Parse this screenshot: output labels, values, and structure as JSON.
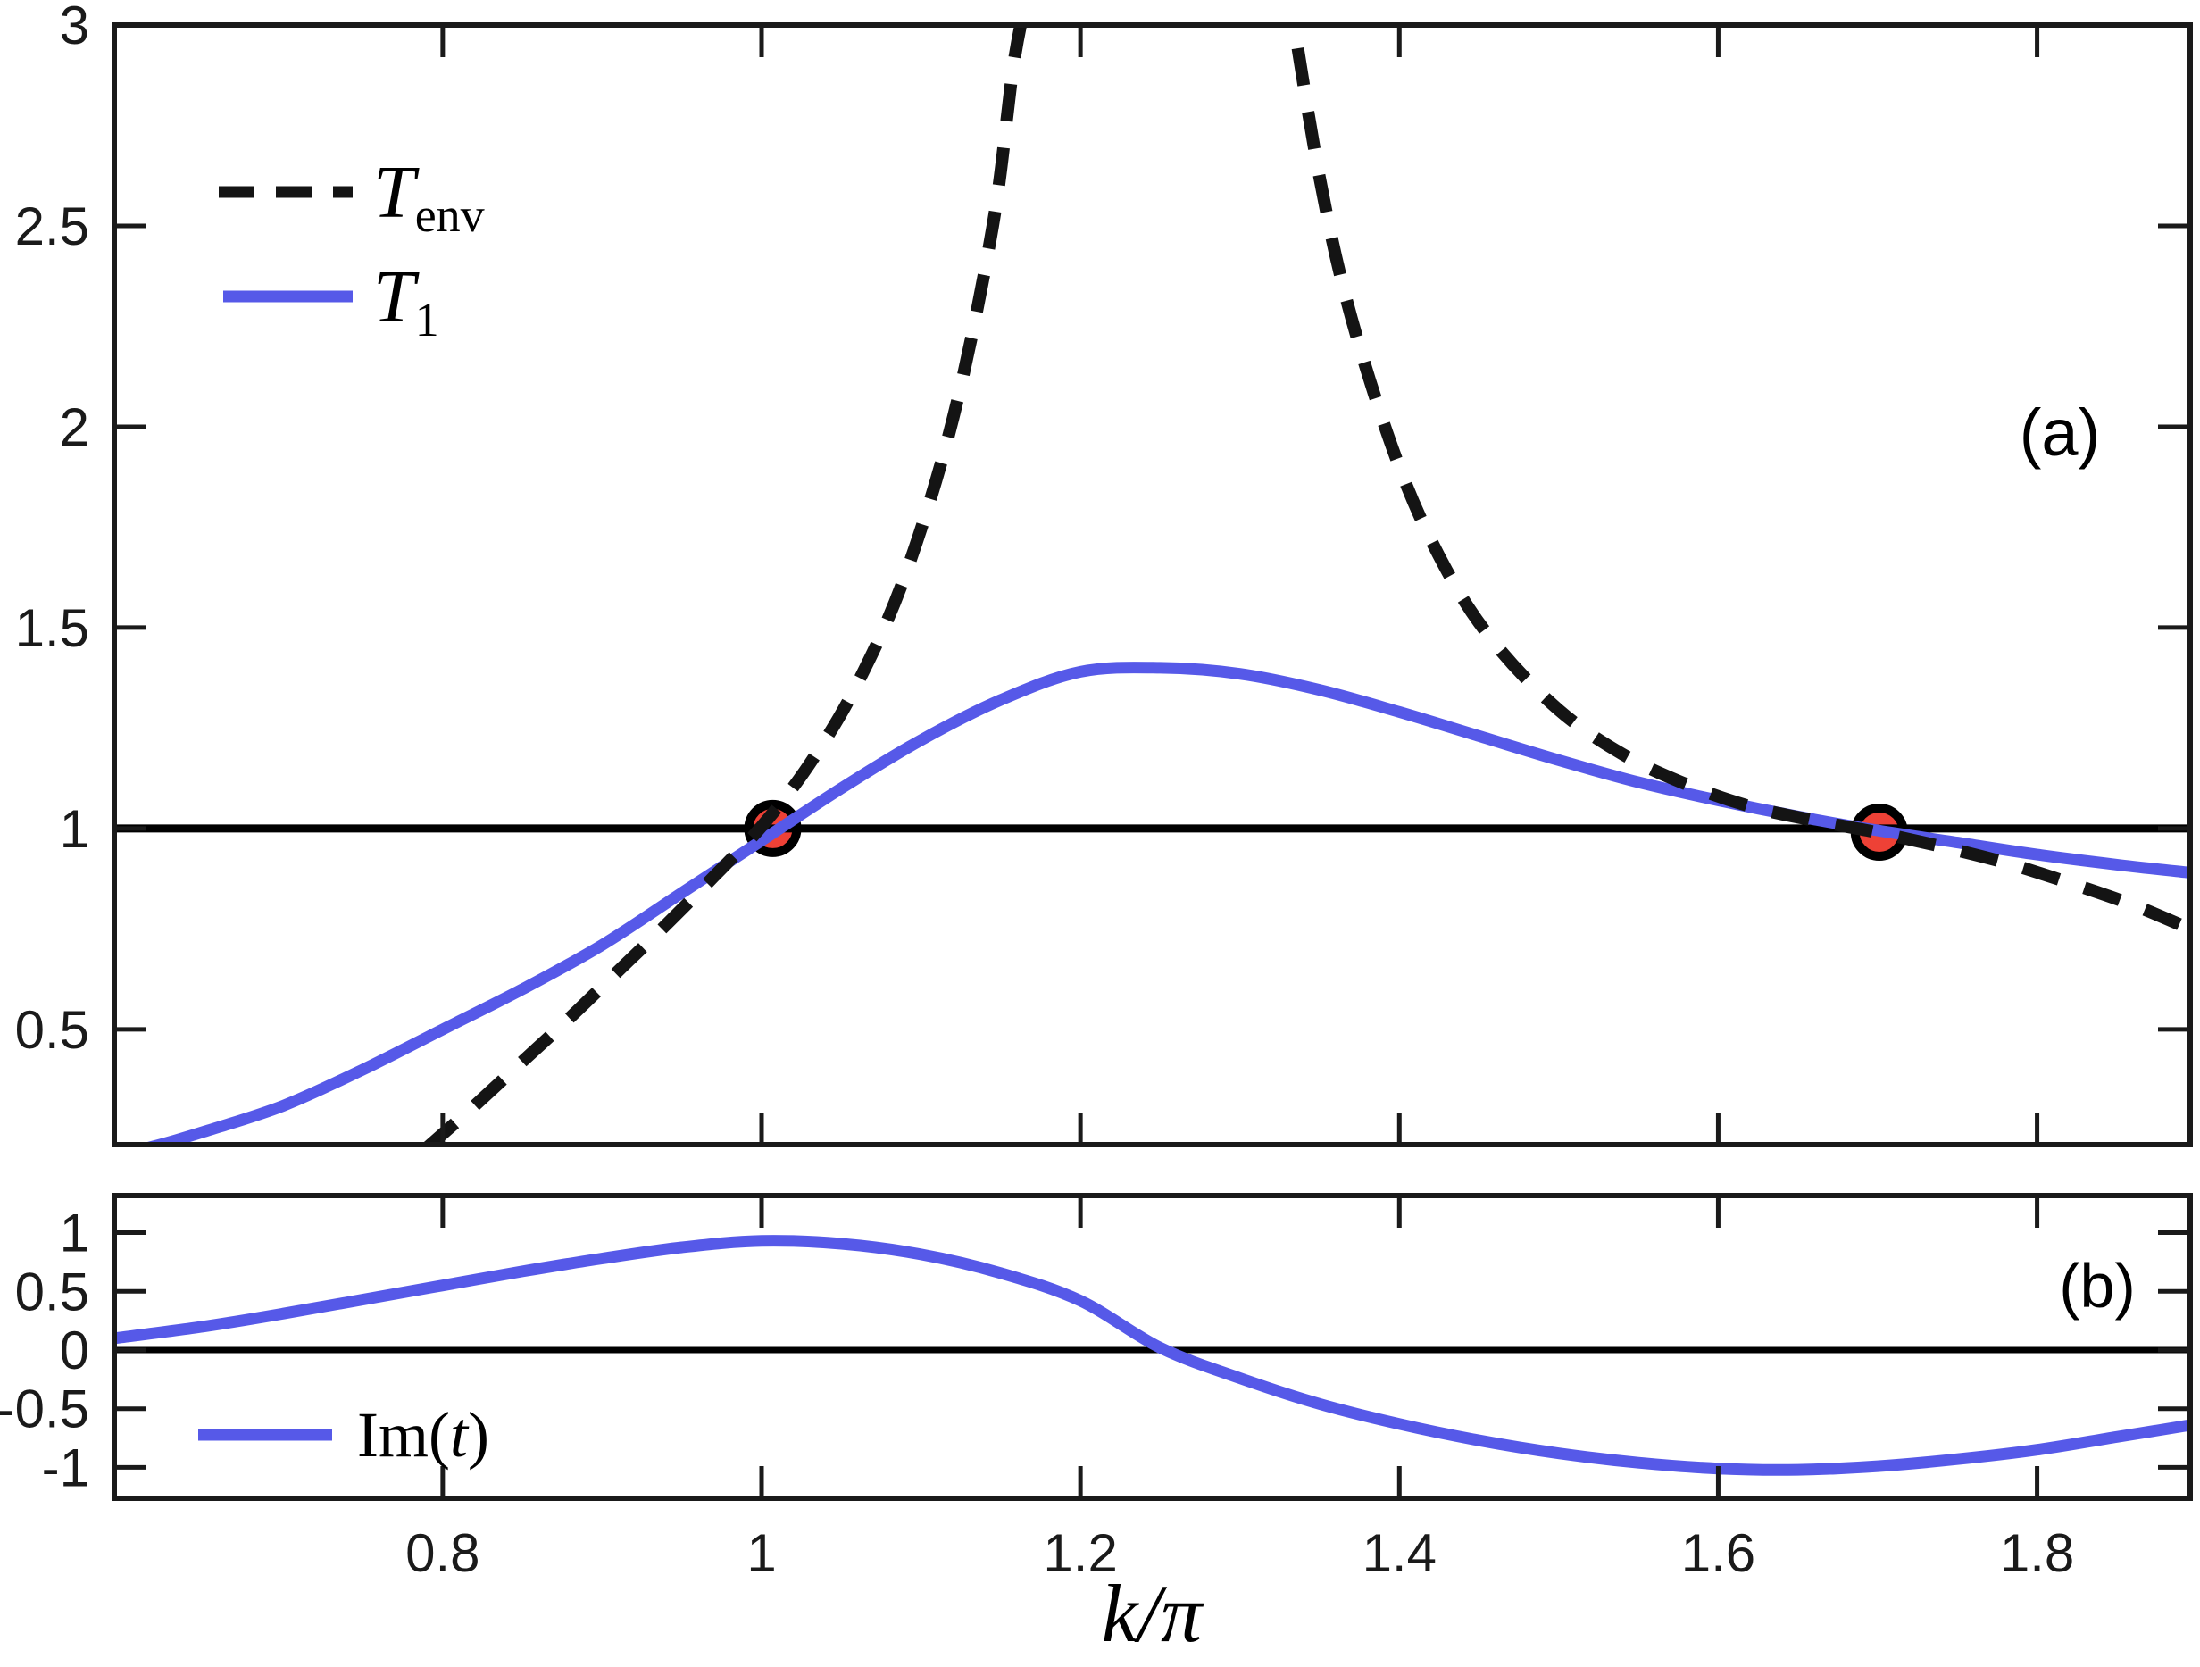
{
  "figure": {
    "background": "#ffffff"
  },
  "colors": {
    "curve_blue": "#5659E8",
    "curve_black": "#141414",
    "axis": "#1a1a1a",
    "reference_line": "#000000",
    "marker_fill": "#EE4136",
    "marker_edge": "#000000"
  },
  "labels": {
    "panel_a": "(a)",
    "panel_b": "(b)",
    "xlabel": "k/π",
    "legend_tenv_main": "T",
    "legend_tenv_sub": "env",
    "legend_t1_main": "T",
    "legend_t1_sub": "1",
    "legend_im_pre": "Im(",
    "legend_im_arg": "t",
    "legend_im_post": ")"
  },
  "chart_data": [
    {
      "type": "line",
      "panel": "a",
      "annotation": "(a)",
      "xlim": [
        0.594,
        1.896
      ],
      "ylim": [
        0.213,
        3.0
      ],
      "xticks": [
        0.8,
        1.0,
        1.2,
        1.4,
        1.6,
        1.8
      ],
      "yticks": [
        0.5,
        1,
        1.5,
        2,
        2.5,
        3
      ],
      "ytick_labels": [
        "0.5",
        "1",
        "1.5",
        "2",
        "2.5",
        "3"
      ],
      "hline": 1,
      "legend_position": "upper-left",
      "markers": [
        {
          "x": 1.007,
          "y": 1.0
        },
        {
          "x": 1.701,
          "y": 0.991
        }
      ],
      "series": [
        {
          "name": "T_1",
          "style": "solid",
          "color": "blue",
          "x": [
            0.594,
            0.62,
            0.65,
            0.7,
            0.75,
            0.8,
            0.85,
            0.9,
            0.95,
            1.0,
            1.05,
            1.1,
            1.15,
            1.2,
            1.25,
            1.3,
            1.35,
            1.4,
            1.45,
            1.5,
            1.55,
            1.6,
            1.65,
            1.7,
            1.75,
            1.8,
            1.85,
            1.896
          ],
          "y": [
            0.185,
            0.21,
            0.245,
            0.31,
            0.4,
            0.5,
            0.6,
            0.71,
            0.84,
            0.97,
            1.1,
            1.22,
            1.32,
            1.39,
            1.4,
            1.385,
            1.345,
            1.29,
            1.23,
            1.17,
            1.115,
            1.07,
            1.03,
            0.995,
            0.965,
            0.935,
            0.91,
            0.89
          ]
        },
        {
          "name": "T_env",
          "style": "dashed",
          "color": "black",
          "branches": [
            {
              "x": [
                0.79,
                0.82,
                0.85,
                0.88,
                0.91,
                0.94,
                0.97,
                1.0,
                1.03,
                1.06,
                1.09,
                1.12,
                1.145,
                1.158,
                1.168
              ],
              "y": [
                0.205,
                0.31,
                0.42,
                0.53,
                0.645,
                0.76,
                0.88,
                1.005,
                1.16,
                1.36,
                1.63,
                2.02,
                2.5,
                2.9,
                3.1
              ]
            },
            {
              "x": [
                1.33,
                1.35,
                1.37,
                1.4,
                1.43,
                1.46,
                1.5,
                1.54,
                1.58,
                1.62,
                1.66,
                1.7,
                1.74,
                1.78,
                1.82,
                1.86,
                1.896
              ],
              "y": [
                3.1,
                2.62,
                2.27,
                1.9,
                1.64,
                1.46,
                1.295,
                1.185,
                1.11,
                1.055,
                1.02,
                0.99,
                0.955,
                0.915,
                0.865,
                0.81,
                0.75
              ]
            }
          ]
        }
      ]
    },
    {
      "type": "line",
      "panel": "b",
      "annotation": "(b)",
      "xlim": [
        0.594,
        1.896
      ],
      "ylim": [
        -1.263,
        1.316
      ],
      "xticks": [
        0.8,
        1.0,
        1.2,
        1.4,
        1.6,
        1.8
      ],
      "xtick_labels": [
        "0.8",
        "1",
        "1.2",
        "1.4",
        "1.6",
        "1.8"
      ],
      "xlabel": "k/π",
      "yticks": [
        -1,
        -0.5,
        0,
        0.5,
        1
      ],
      "ytick_labels": [
        "-1",
        "-0.5",
        "0",
        "0.5",
        "1"
      ],
      "hline": 0,
      "legend_position": "lower-left",
      "series": [
        {
          "name": "Im(t)",
          "style": "solid",
          "color": "blue",
          "x": [
            0.594,
            0.65,
            0.7,
            0.75,
            0.8,
            0.85,
            0.9,
            0.95,
            1.0,
            1.05,
            1.1,
            1.15,
            1.2,
            1.25,
            1.3,
            1.35,
            1.4,
            1.45,
            1.5,
            1.55,
            1.6,
            1.65,
            1.7,
            1.75,
            1.8,
            1.85,
            1.896
          ],
          "y": [
            0.1,
            0.2,
            0.31,
            0.43,
            0.55,
            0.67,
            0.78,
            0.875,
            0.93,
            0.905,
            0.815,
            0.655,
            0.42,
            0.02,
            -0.24,
            -0.46,
            -0.63,
            -0.77,
            -0.88,
            -0.96,
            -1.01,
            -1.02,
            -0.99,
            -0.93,
            -0.85,
            -0.74,
            -0.64
          ]
        }
      ]
    }
  ]
}
